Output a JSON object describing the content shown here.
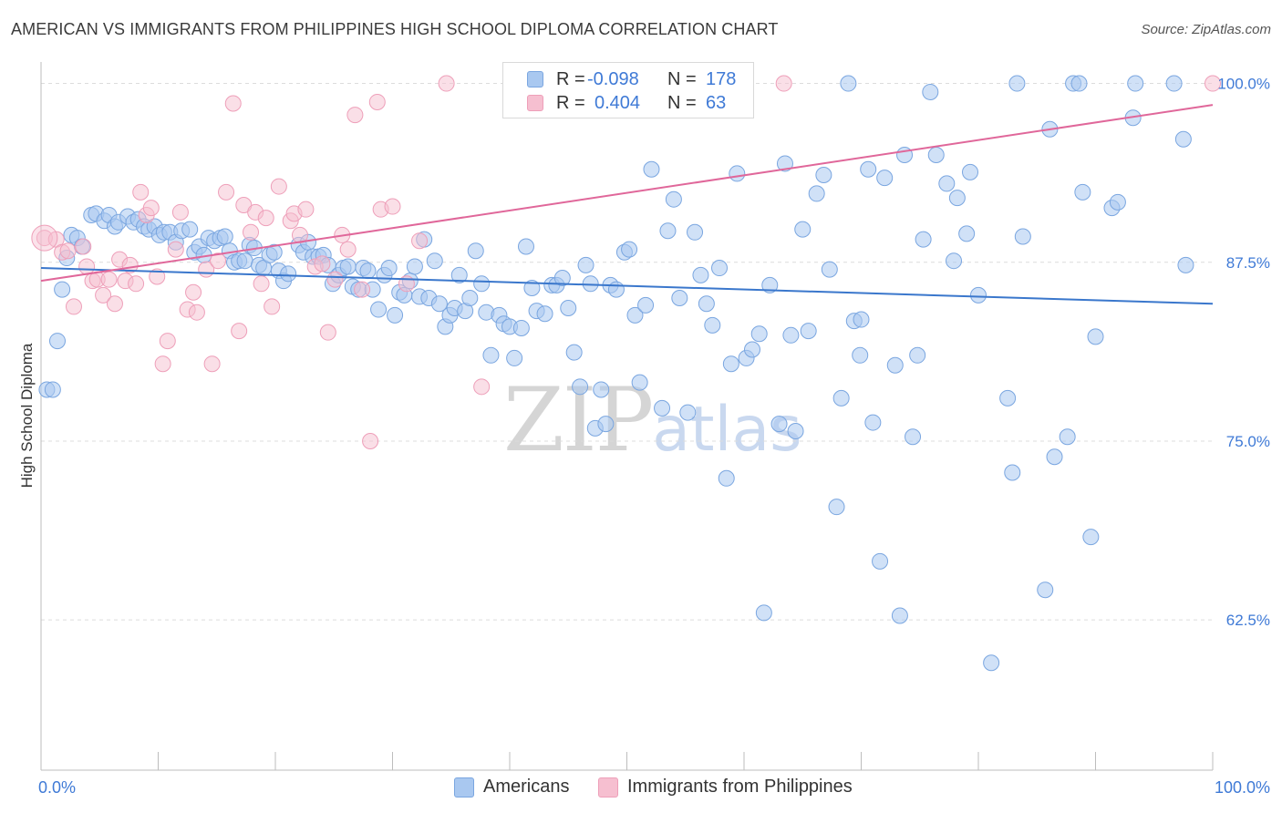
{
  "title": "AMERICAN VS IMMIGRANTS FROM PHILIPPINES HIGH SCHOOL DIPLOMA CORRELATION CHART",
  "source": "Source: ZipAtlas.com",
  "watermark": {
    "zip": "ZIP",
    "atlas": "atlas"
  },
  "colors": {
    "americans_fill": "#a9c8f0",
    "americans_stroke": "#7aa6e0",
    "americans_line": "#3a77cc",
    "philippines_fill": "#f6bfd0",
    "philippines_stroke": "#ee9fb9",
    "philippines_line": "#e0679a",
    "axis_label": "#3f7ad6",
    "grid": "#dcdcdc"
  },
  "legend": {
    "rows": [
      {
        "r_label": "R =",
        "r_value": "-0.098",
        "n_label": "N =",
        "n_value": "178"
      },
      {
        "r_label": "R =",
        "r_value": "0.404",
        "n_label": "N =",
        "n_value": "63"
      }
    ]
  },
  "series_labels": {
    "americans": "Americans",
    "philippines": "Immigrants from Philippines"
  },
  "chart_data": {
    "type": "scatter",
    "title": "AMERICAN VS IMMIGRANTS FROM PHILIPPINES HIGH SCHOOL DIPLOMA CORRELATION CHART",
    "xlabel": "",
    "ylabel": "High School Diploma",
    "xlim": [
      0,
      100
    ],
    "ylim": [
      52,
      101.5
    ],
    "x_tick_labels": [
      "0.0%",
      "100.0%"
    ],
    "y_ticks": [
      62.5,
      75.0,
      87.5,
      100.0
    ],
    "y_tick_labels": [
      "62.5%",
      "75.0%",
      "87.5%",
      "100.0%"
    ],
    "grid": true,
    "series": [
      {
        "name": "Americans",
        "r": -0.098,
        "n": 178,
        "trend": {
          "x": [
            0,
            100
          ],
          "y": [
            87.1,
            84.6
          ]
        },
        "points": [
          [
            0.5,
            78.6
          ],
          [
            1.0,
            78.6
          ],
          [
            1.4,
            82.0
          ],
          [
            1.8,
            85.6
          ],
          [
            2.2,
            87.8
          ],
          [
            2.6,
            89.4
          ],
          [
            3.1,
            89.2
          ],
          [
            3.5,
            88.6
          ],
          [
            4.3,
            90.8
          ],
          [
            4.7,
            90.9
          ],
          [
            5.4,
            90.4
          ],
          [
            5.8,
            90.8
          ],
          [
            6.3,
            90.0
          ],
          [
            6.6,
            90.3
          ],
          [
            7.4,
            90.7
          ],
          [
            7.9,
            90.3
          ],
          [
            8.3,
            90.5
          ],
          [
            8.8,
            90.0
          ],
          [
            9.2,
            89.8
          ],
          [
            9.7,
            90.0
          ],
          [
            10.1,
            89.4
          ],
          [
            10.5,
            89.6
          ],
          [
            11.0,
            89.6
          ],
          [
            11.5,
            88.9
          ],
          [
            12.0,
            89.7
          ],
          [
            12.7,
            89.8
          ],
          [
            13.1,
            88.2
          ],
          [
            13.5,
            88.6
          ],
          [
            13.9,
            88.0
          ],
          [
            14.3,
            89.2
          ],
          [
            14.8,
            89.0
          ],
          [
            15.3,
            89.2
          ],
          [
            15.7,
            89.3
          ],
          [
            16.1,
            88.3
          ],
          [
            16.5,
            87.5
          ],
          [
            16.9,
            87.6
          ],
          [
            17.4,
            87.6
          ],
          [
            17.8,
            88.7
          ],
          [
            18.2,
            88.5
          ],
          [
            18.6,
            87.3
          ],
          [
            19.0,
            87.1
          ],
          [
            19.5,
            88.0
          ],
          [
            19.9,
            88.2
          ],
          [
            20.3,
            86.9
          ],
          [
            20.7,
            86.2
          ],
          [
            21.1,
            86.7
          ],
          [
            22.0,
            88.7
          ],
          [
            22.4,
            88.2
          ],
          [
            22.8,
            88.9
          ],
          [
            23.2,
            87.9
          ],
          [
            23.7,
            87.9
          ],
          [
            24.1,
            88.0
          ],
          [
            24.5,
            87.3
          ],
          [
            24.9,
            86.0
          ],
          [
            25.4,
            86.6
          ],
          [
            25.8,
            87.1
          ],
          [
            26.2,
            87.2
          ],
          [
            26.6,
            85.8
          ],
          [
            27.1,
            85.6
          ],
          [
            27.5,
            87.1
          ],
          [
            27.9,
            86.9
          ],
          [
            28.3,
            85.6
          ],
          [
            28.8,
            84.2
          ],
          [
            29.3,
            86.6
          ],
          [
            29.7,
            87.1
          ],
          [
            30.2,
            83.8
          ],
          [
            30.6,
            85.4
          ],
          [
            31.0,
            85.2
          ],
          [
            31.5,
            86.2
          ],
          [
            31.9,
            87.2
          ],
          [
            32.3,
            85.1
          ],
          [
            32.7,
            89.1
          ],
          [
            33.1,
            85.0
          ],
          [
            33.6,
            87.6
          ],
          [
            34.0,
            84.6
          ],
          [
            34.5,
            83.0
          ],
          [
            34.9,
            83.8
          ],
          [
            35.3,
            84.3
          ],
          [
            35.7,
            86.6
          ],
          [
            36.2,
            84.1
          ],
          [
            36.6,
            85.0
          ],
          [
            37.1,
            88.3
          ],
          [
            37.6,
            86.0
          ],
          [
            38.0,
            84.0
          ],
          [
            38.4,
            81.0
          ],
          [
            39.1,
            83.8
          ],
          [
            39.5,
            83.2
          ],
          [
            40.0,
            83.0
          ],
          [
            40.4,
            80.8
          ],
          [
            41.0,
            82.9
          ],
          [
            41.4,
            88.6
          ],
          [
            41.9,
            85.7
          ],
          [
            42.3,
            84.1
          ],
          [
            43.0,
            83.9
          ],
          [
            43.6,
            85.9
          ],
          [
            44.0,
            85.9
          ],
          [
            44.5,
            86.4
          ],
          [
            45.0,
            84.3
          ],
          [
            45.5,
            81.2
          ],
          [
            46.0,
            78.8
          ],
          [
            46.5,
            87.3
          ],
          [
            46.9,
            86.0
          ],
          [
            47.3,
            75.9
          ],
          [
            47.8,
            78.6
          ],
          [
            48.2,
            76.2
          ],
          [
            48.6,
            85.9
          ],
          [
            49.1,
            85.6
          ],
          [
            49.8,
            88.2
          ],
          [
            50.2,
            88.4
          ],
          [
            50.7,
            83.8
          ],
          [
            51.1,
            79.1
          ],
          [
            51.6,
            84.5
          ],
          [
            52.1,
            94.0
          ],
          [
            53.0,
            77.3
          ],
          [
            53.5,
            89.7
          ],
          [
            54.0,
            91.9
          ],
          [
            54.5,
            85.0
          ],
          [
            55.2,
            77.0
          ],
          [
            55.8,
            89.6
          ],
          [
            56.3,
            86.6
          ],
          [
            56.8,
            84.6
          ],
          [
            57.3,
            83.1
          ],
          [
            57.9,
            87.1
          ],
          [
            58.5,
            72.4
          ],
          [
            58.9,
            80.4
          ],
          [
            59.4,
            93.7
          ],
          [
            60.2,
            80.8
          ],
          [
            60.7,
            81.4
          ],
          [
            61.3,
            82.5
          ],
          [
            61.7,
            63.0
          ],
          [
            62.2,
            85.9
          ],
          [
            63.0,
            76.2
          ],
          [
            63.5,
            94.4
          ],
          [
            64.0,
            82.4
          ],
          [
            64.4,
            75.7
          ],
          [
            65.0,
            89.8
          ],
          [
            65.5,
            82.7
          ],
          [
            66.2,
            92.3
          ],
          [
            66.8,
            93.6
          ],
          [
            67.3,
            87.0
          ],
          [
            67.9,
            70.4
          ],
          [
            68.3,
            78.0
          ],
          [
            68.9,
            100.0
          ],
          [
            69.4,
            83.4
          ],
          [
            69.9,
            81.0
          ],
          [
            70.0,
            83.5
          ],
          [
            70.6,
            94.0
          ],
          [
            71.0,
            76.3
          ],
          [
            71.6,
            66.6
          ],
          [
            72.0,
            93.4
          ],
          [
            72.9,
            80.3
          ],
          [
            73.3,
            62.8
          ],
          [
            73.7,
            95.0
          ],
          [
            74.4,
            75.3
          ],
          [
            74.8,
            81.0
          ],
          [
            75.3,
            89.1
          ],
          [
            75.9,
            99.4
          ],
          [
            76.4,
            95.0
          ],
          [
            77.3,
            93.0
          ],
          [
            77.9,
            87.6
          ],
          [
            78.2,
            92.0
          ],
          [
            79.0,
            89.5
          ],
          [
            79.3,
            93.8
          ],
          [
            80.0,
            85.2
          ],
          [
            81.1,
            59.5
          ],
          [
            82.5,
            78.0
          ],
          [
            82.9,
            72.8
          ],
          [
            83.3,
            100.0
          ],
          [
            83.8,
            89.3
          ],
          [
            85.7,
            64.6
          ],
          [
            86.1,
            96.8
          ],
          [
            86.5,
            73.9
          ],
          [
            87.6,
            75.3
          ],
          [
            88.1,
            100.0
          ],
          [
            88.6,
            100.0
          ],
          [
            88.9,
            92.4
          ],
          [
            89.6,
            68.3
          ],
          [
            90.0,
            82.3
          ],
          [
            91.4,
            91.3
          ],
          [
            91.9,
            91.7
          ],
          [
            93.2,
            97.6
          ],
          [
            93.4,
            100.0
          ],
          [
            96.7,
            100.0
          ],
          [
            97.5,
            96.1
          ],
          [
            97.7,
            87.3
          ]
        ]
      },
      {
        "name": "Immigrants from Philippines",
        "r": 0.404,
        "n": 63,
        "trend": {
          "x": [
            0,
            100
          ],
          "y": [
            86.2,
            98.5
          ]
        },
        "points": [
          [
            0.3,
            89.2
          ],
          [
            1.3,
            89.1
          ],
          [
            1.8,
            88.2
          ],
          [
            2.3,
            88.3
          ],
          [
            2.8,
            84.4
          ],
          [
            3.6,
            88.6
          ],
          [
            3.9,
            87.2
          ],
          [
            4.4,
            86.2
          ],
          [
            4.8,
            86.3
          ],
          [
            5.3,
            85.2
          ],
          [
            5.8,
            86.3
          ],
          [
            6.3,
            84.6
          ],
          [
            6.7,
            87.7
          ],
          [
            7.2,
            86.2
          ],
          [
            7.6,
            87.3
          ],
          [
            8.1,
            86.0
          ],
          [
            8.5,
            92.4
          ],
          [
            9.0,
            90.8
          ],
          [
            9.4,
            91.3
          ],
          [
            9.9,
            86.5
          ],
          [
            10.4,
            80.4
          ],
          [
            10.8,
            82.0
          ],
          [
            11.5,
            88.4
          ],
          [
            11.9,
            91.0
          ],
          [
            12.5,
            84.2
          ],
          [
            13.0,
            85.4
          ],
          [
            13.3,
            84.0
          ],
          [
            14.1,
            87.0
          ],
          [
            14.6,
            80.4
          ],
          [
            15.1,
            87.6
          ],
          [
            15.8,
            92.4
          ],
          [
            16.4,
            98.6
          ],
          [
            16.9,
            82.7
          ],
          [
            17.3,
            91.5
          ],
          [
            17.9,
            89.6
          ],
          [
            18.3,
            91.0
          ],
          [
            18.8,
            86.0
          ],
          [
            19.2,
            90.6
          ],
          [
            19.7,
            84.4
          ],
          [
            20.3,
            92.8
          ],
          [
            21.3,
            90.4
          ],
          [
            21.6,
            90.9
          ],
          [
            22.1,
            89.4
          ],
          [
            22.6,
            91.2
          ],
          [
            23.4,
            87.2
          ],
          [
            24.0,
            87.4
          ],
          [
            24.5,
            82.6
          ],
          [
            25.1,
            86.3
          ],
          [
            25.7,
            89.4
          ],
          [
            26.2,
            88.4
          ],
          [
            26.8,
            97.8
          ],
          [
            27.4,
            85.6
          ],
          [
            28.1,
            75.0
          ],
          [
            28.7,
            98.7
          ],
          [
            29.0,
            91.2
          ],
          [
            30.0,
            91.4
          ],
          [
            31.2,
            86.0
          ],
          [
            32.3,
            89.0
          ],
          [
            34.6,
            100.0
          ],
          [
            37.6,
            78.8
          ],
          [
            60.1,
            100.0
          ],
          [
            63.4,
            100.0
          ],
          [
            100.0,
            100.0
          ]
        ]
      }
    ]
  }
}
